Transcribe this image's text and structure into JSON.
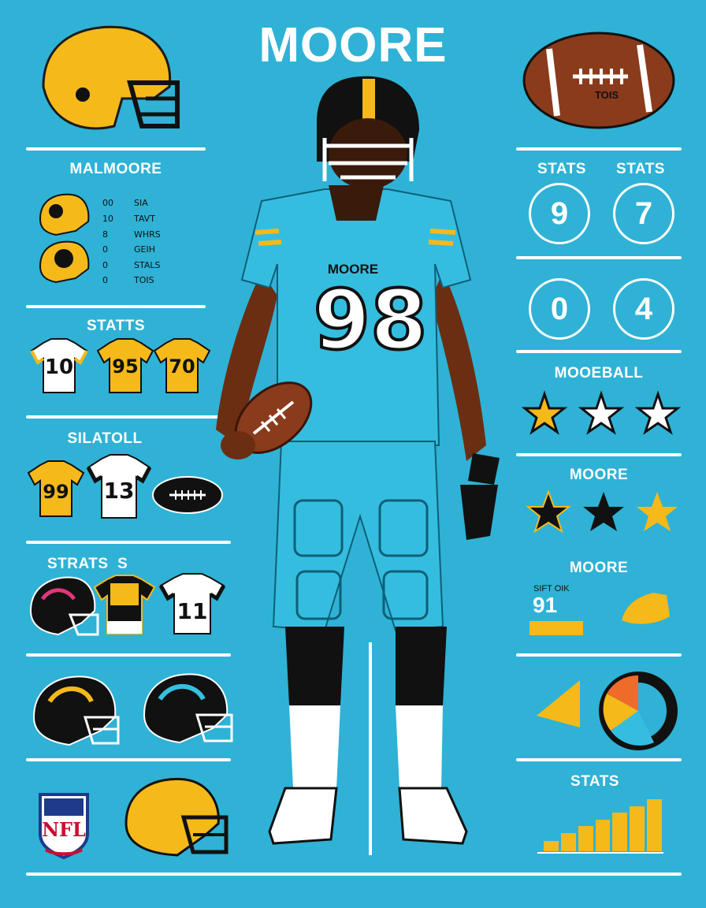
{
  "header": {
    "title": "MOORE"
  },
  "player": {
    "name_on_jersey": "MOORE",
    "jersey_number": "98"
  },
  "left_panel": {
    "sections": [
      {
        "label": "MALMOORE",
        "list": [
          "SIA",
          "TAVT",
          "WHRS",
          "GEIH",
          "STALS",
          "TOIS"
        ],
        "list_prefixes": [
          "00",
          "10",
          "8",
          "0",
          "0",
          "0"
        ]
      },
      {
        "label": "STATTS",
        "jerseys": [
          "10",
          "95",
          "70"
        ]
      },
      {
        "label": "SILATOLL",
        "jerseys": [
          "99",
          "13"
        ]
      },
      {
        "label": "STRATS  S",
        "jerseys": [
          "11"
        ]
      }
    ],
    "nfl_badge": "NFL"
  },
  "right_panel": {
    "stats_labels": [
      "STATS",
      "STATS"
    ],
    "stat_circles": [
      "9",
      "7",
      "0",
      "4"
    ],
    "moreball_label": "MOOEBALL",
    "moore_label_1": "MOORE",
    "moore_label_2": "MOORE",
    "mini_caption": "SIFT OIK",
    "mini_number": "91",
    "bottom_label": "STATS",
    "bar_values": [
      12,
      22,
      30,
      38,
      46,
      54,
      62
    ],
    "ball_text": "TOIS"
  },
  "colors": {
    "background": "#2fb2d6",
    "gold": "#f5b91a",
    "black": "#111111",
    "white": "#ffffff",
    "brown": "#8a3b1c"
  }
}
